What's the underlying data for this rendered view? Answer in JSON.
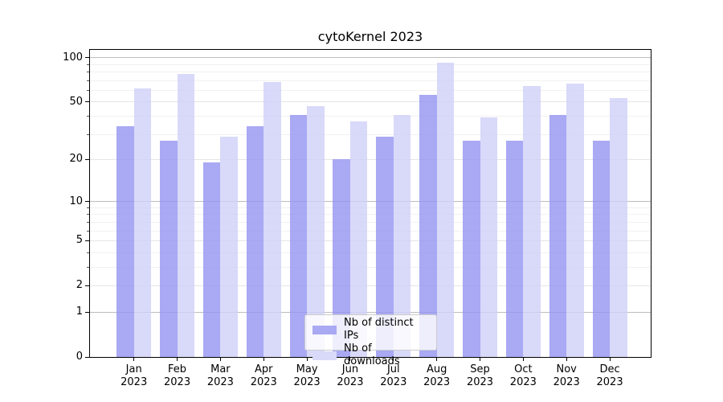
{
  "chart_data": {
    "type": "bar",
    "title": "cytoKernel 2023",
    "categories": [
      "Jan",
      "Feb",
      "Mar",
      "Apr",
      "May",
      "Jun",
      "Jul",
      "Aug",
      "Sep",
      "Oct",
      "Nov",
      "Dec"
    ],
    "category_year": "2023",
    "series": [
      {
        "name": "Nb of distinct IPs",
        "color": "rgba(147,147,241,0.8)",
        "solid_color": "#a9a9f4",
        "values": [
          34,
          27,
          19,
          34,
          41,
          20,
          29,
          56,
          27,
          27,
          41,
          27
        ]
      },
      {
        "name": "Nb of downloads",
        "color": "rgba(208,208,248,0.8)",
        "solid_color": "#d9d9f9",
        "values": [
          62,
          78,
          29,
          68,
          47,
          37,
          41,
          93,
          39,
          64,
          67,
          53
        ]
      }
    ],
    "xlabel": "",
    "ylabel": "",
    "yscale": "log1p",
    "ylim": [
      0,
      113
    ],
    "yticks_labeled": [
      0,
      1,
      2,
      5,
      10,
      20,
      50,
      100
    ],
    "yticks_major": [
      1,
      10,
      100
    ],
    "yticks_mid": [
      2,
      5,
      20,
      50
    ],
    "yticks_minor": [
      3,
      4,
      6,
      7,
      8,
      9,
      30,
      40,
      60,
      70,
      80,
      90
    ],
    "grid": "horizontal, visible through translucent bars",
    "legend_position": "lower center inside plot",
    "colors": {
      "background": "#ffffff",
      "spine": "#000000",
      "text": "#000000",
      "legend_border": "#cccccc"
    }
  }
}
